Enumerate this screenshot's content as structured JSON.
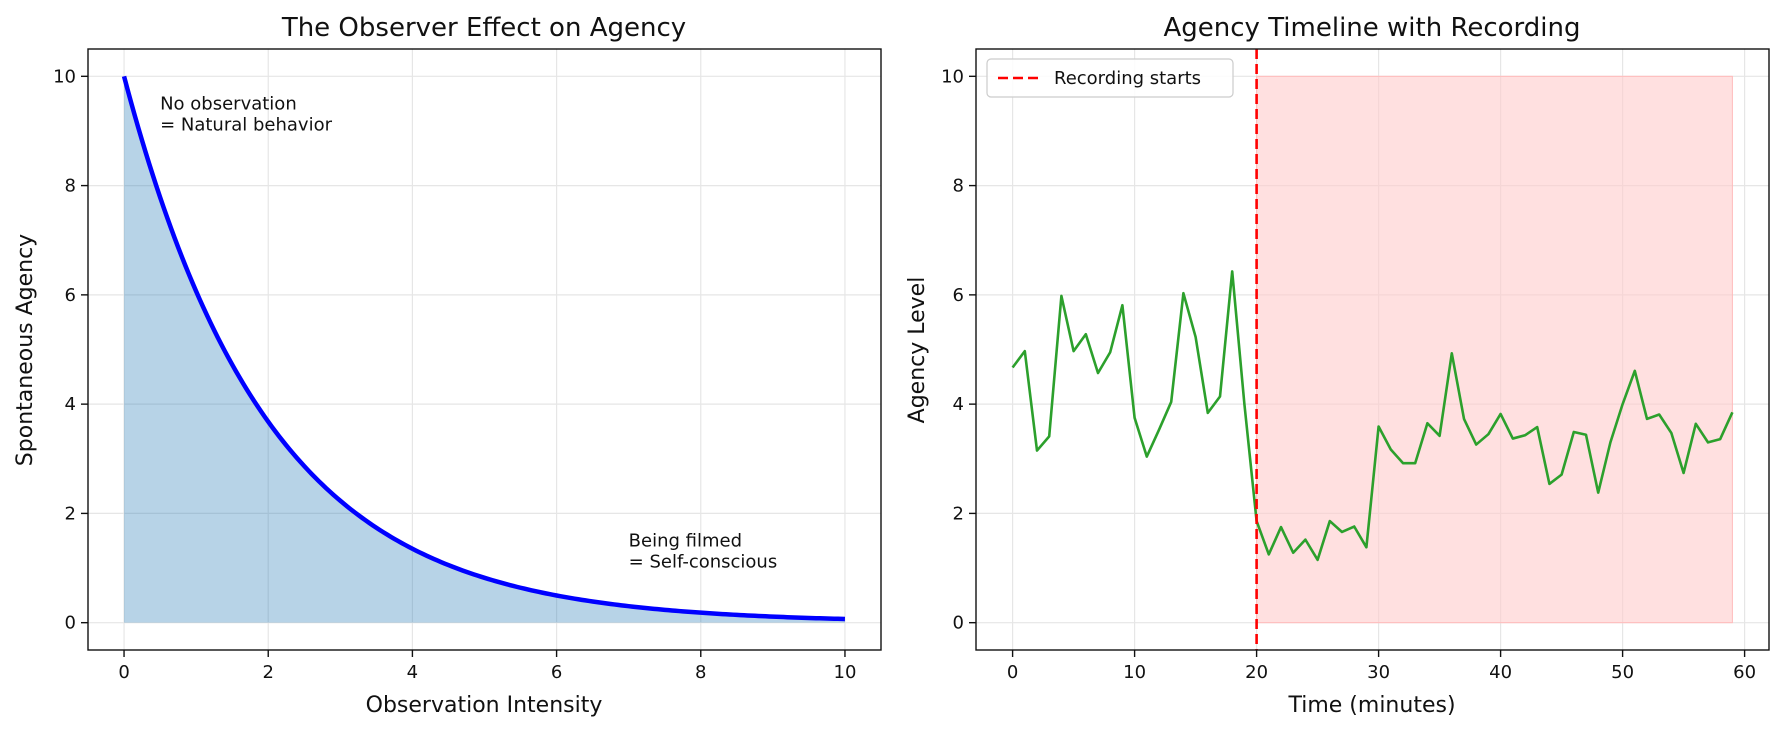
{
  "chart_data": [
    {
      "type": "area",
      "title": "The Observer Effect on Agency",
      "xlabel": "Observation Intensity",
      "ylabel": "Spontaneous Agency",
      "xlim": [
        -0.5,
        10.5
      ],
      "ylim": [
        -0.5,
        10.5
      ],
      "xticks": [
        0,
        2,
        4,
        6,
        8,
        10
      ],
      "yticks": [
        0,
        2,
        4,
        6,
        8,
        10
      ],
      "grid": true,
      "curve": {
        "formula": "10 * exp(-x / 2)",
        "x_range": [
          0,
          10
        ],
        "color": "#0000ff",
        "fill_color": "#1f77b4",
        "fill_opacity": 0.32
      },
      "series": [
        {
          "x": [
            0,
            0.5,
            1,
            1.5,
            2,
            2.5,
            3,
            3.5,
            4,
            4.5,
            5,
            5.5,
            6,
            6.5,
            7,
            7.5,
            8,
            8.5,
            9,
            9.5,
            10
          ],
          "values": [
            10.0,
            7.79,
            6.07,
            4.72,
            3.68,
            2.87,
            2.23,
            1.74,
            1.35,
            1.05,
            0.82,
            0.64,
            0.5,
            0.39,
            0.3,
            0.24,
            0.18,
            0.14,
            0.11,
            0.09,
            0.07
          ]
        }
      ],
      "annotations": [
        {
          "lines": [
            "No observation",
            "= Natural behavior"
          ],
          "x": 0.5,
          "y": 9.5
        },
        {
          "lines": [
            "Being filmed",
            "= Self-conscious"
          ],
          "x": 7.0,
          "y": 1.5
        }
      ]
    },
    {
      "type": "line",
      "title": "Agency Timeline with Recording",
      "xlabel": "Time (minutes)",
      "ylabel": "Agency Level",
      "xlim": [
        -3,
        62
      ],
      "ylim": [
        -0.5,
        10.5
      ],
      "xticks": [
        0,
        10,
        20,
        30,
        40,
        50,
        60
      ],
      "yticks": [
        0,
        2,
        4,
        6,
        8,
        10
      ],
      "grid": true,
      "legend": {
        "position": "top-left",
        "entries": [
          {
            "label": "Recording starts",
            "color": "#ff0000",
            "style": "dashed"
          }
        ]
      },
      "vline": {
        "x": 20,
        "color": "#ff0000"
      },
      "shaded_region": {
        "x": [
          20,
          59
        ],
        "y": [
          0,
          10
        ],
        "color": "#ffcccc"
      },
      "series": [
        {
          "color": "#2ca02c",
          "x": [
            0,
            1,
            2,
            3,
            4,
            5,
            6,
            7,
            8,
            9,
            10,
            11,
            12,
            13,
            14,
            15,
            16,
            17,
            18,
            19,
            20,
            21,
            22,
            23,
            24,
            25,
            26,
            27,
            28,
            29,
            30,
            31,
            32,
            33,
            34,
            35,
            36,
            37,
            38,
            39,
            40,
            41,
            42,
            43,
            44,
            45,
            46,
            47,
            48,
            49,
            50,
            51,
            52,
            53,
            54,
            55,
            56,
            57,
            58,
            59
          ],
          "values": [
            4.67,
            4.97,
            3.15,
            3.41,
            5.98,
            4.97,
            5.28,
            4.57,
            4.95,
            5.81,
            3.75,
            3.04,
            3.53,
            4.04,
            6.03,
            5.23,
            3.84,
            4.14,
            6.43,
            4.0,
            1.86,
            1.25,
            1.75,
            1.28,
            1.52,
            1.15,
            1.86,
            1.66,
            1.76,
            1.38,
            3.59,
            3.17,
            2.92,
            2.92,
            3.65,
            3.42,
            4.93,
            3.73,
            3.26,
            3.45,
            3.82,
            3.37,
            3.43,
            3.58,
            2.54,
            2.71,
            3.49,
            3.44,
            2.38,
            3.3,
            4.0,
            4.61,
            3.73,
            3.81,
            3.47,
            2.74,
            3.64,
            3.3,
            3.36,
            3.85
          ]
        }
      ]
    }
  ]
}
